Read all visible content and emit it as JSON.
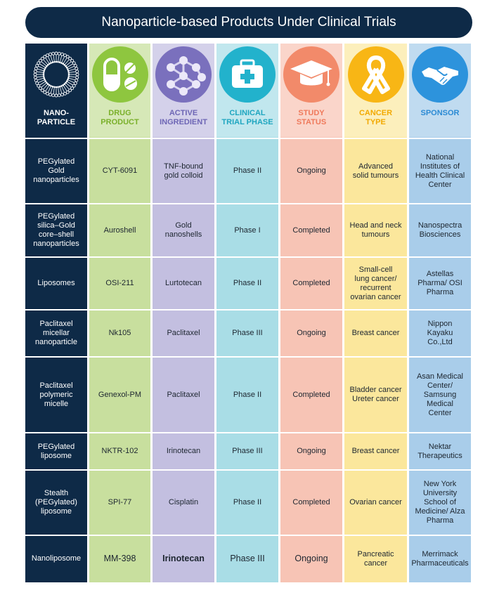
{
  "title": "Nanoparticle-based Products Under Clinical Trials",
  "columns": [
    {
      "key": "nanoparticle",
      "label": "NANO-\nPARTICLE",
      "icon": "nanoparticle-sphere-icon",
      "color": "#ffffff",
      "circle": "#0e2a47"
    },
    {
      "key": "drug_product",
      "label": "DRUG\nPRODUCT",
      "icon": "pills-icon",
      "color": "#7ab02a",
      "circle": "#8ec63f"
    },
    {
      "key": "active_ingredient",
      "label": "ACTIVE\nINGREDIENT",
      "icon": "molecule-icon",
      "color": "#6e66b5",
      "circle": "#7a70bd"
    },
    {
      "key": "clinical_trial_phase",
      "label": "CLINICAL\nTRIAL PHASE",
      "icon": "medical-kit-icon",
      "color": "#1fa6c0",
      "circle": "#22b2cc"
    },
    {
      "key": "study_status",
      "label": "STUDY\nSTATUS",
      "icon": "graduation-cap-icon",
      "color": "#ef7a5c",
      "circle": "#f28a6a"
    },
    {
      "key": "cancer_type",
      "label": "CANCER\nTYPE",
      "icon": "awareness-ribbon-icon",
      "color": "#f2a900",
      "circle": "#f8b615"
    },
    {
      "key": "sponsor",
      "label": "SPONSOR",
      "icon": "handshake-icon",
      "color": "#2a8ad4",
      "circle": "#2d93dc"
    }
  ],
  "rows": [
    [
      "PEGylated\nGold\nnanoparticles",
      "CYT-6091",
      "TNF-bound\ngold colloid",
      "Phase II",
      "Ongoing",
      "Advanced\nsolid tumours",
      "National\nInstitutes of\nHealth Clinical\nCenter"
    ],
    [
      "PEGylated\nsilica–Gold\ncore–shell\nnanoparticles",
      "Auroshell",
      "Gold\nnanoshells",
      "Phase I",
      "Completed",
      "Head and neck\ntumours",
      "Nanospectra\nBiosciences"
    ],
    [
      "Liposomes",
      "OSI-211",
      "Lurtotecan",
      "Phase II",
      "Completed",
      "Small-cell\nlung cancer/\nrecurrent\novarian cancer",
      "Astellas\nPharma/ OSI\nPharma"
    ],
    [
      "Paclitaxel\nmicellar\nnanoparticle",
      "Nk105",
      "Paclitaxel",
      "Phase III",
      "Ongoing",
      "Breast cancer",
      "Nippon\nKayaku\nCo.,Ltd"
    ],
    [
      "Paclitaxel\npolymeric\nmicelle",
      "Genexol-PM",
      "Paclitaxel",
      "Phase II",
      "Completed",
      "Bladder cancer\nUreter cancer",
      "Asan Medical\nCenter/\nSamsung\nMedical\nCenter"
    ],
    [
      "PEGylated\nliposome",
      "NKTR-102",
      "Irinotecan",
      "Phase III",
      "Ongoing",
      "Breast cancer",
      "Nektar\nTherapeutics"
    ],
    [
      "Stealth\n(PEGylated)\nliposome",
      "SPI-77",
      "Cisplatin",
      "Phase II",
      "Completed",
      "Ovarian cancer",
      "New York\nUniversity\nSchool of\nMedicine/ Alza\nPharma"
    ],
    [
      "Nanoliposome",
      "MM-398",
      "Irinotecan",
      "Phase III",
      "Ongoing",
      "Pancreatic\ncancer",
      "Merrimack\nPharmaceuticals"
    ]
  ]
}
